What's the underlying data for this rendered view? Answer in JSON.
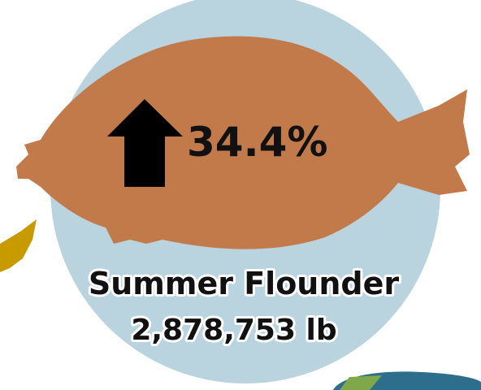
{
  "fish": {
    "change": "34.4%",
    "name": "Summer Flounder",
    "amount": "2,878,753 lb"
  }
}
